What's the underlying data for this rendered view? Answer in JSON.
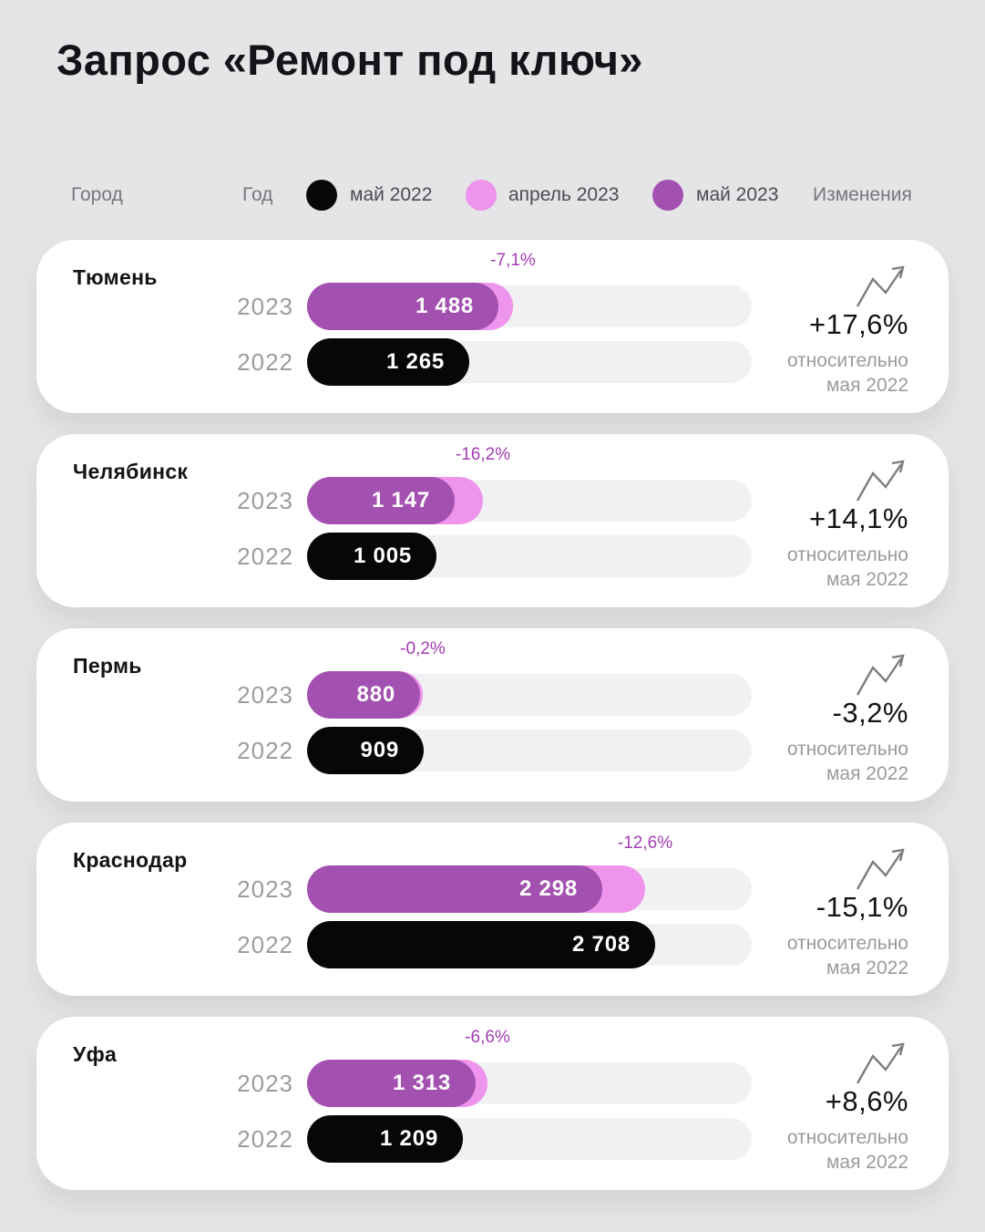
{
  "title": "Запрос «Ремонт под ключ»",
  "colors": {
    "page_bg": "#e5e4e6",
    "card_bg": "#ffffff",
    "may2022": "#070707",
    "april2023": "#ee94ec",
    "may2023": "#a351b1",
    "track": "#f1f0f2",
    "accent_text": "#a33db3"
  },
  "legend": {
    "city_label": "Город",
    "year_label": "Год",
    "items": [
      {
        "label": "май 2022",
        "color": "#070707"
      },
      {
        "label": "апрель 2023",
        "color": "#ee94ec"
      },
      {
        "label": "май 2023",
        "color": "#a351b1"
      }
    ],
    "changes_label": "Изменения"
  },
  "chart_data": {
    "type": "bar",
    "title": "Запрос «Ремонт под ключ»",
    "categories": [
      "Тюмень",
      "Челябинск",
      "Пермь",
      "Краснодар",
      "Уфа"
    ],
    "series": [
      {
        "name": "май 2022",
        "values": [
          1265,
          1005,
          909,
          2708,
          1209
        ]
      },
      {
        "name": "май 2023",
        "values": [
          1488,
          1147,
          880,
          2298,
          1313
        ]
      }
    ],
    "april_to_may_2023_change_pct": [
      -7.1,
      -16.2,
      -0.2,
      -12.6,
      -6.6
    ],
    "yoy_change_labels": [
      "+17,6%",
      "+14,1%",
      "-3,2%",
      "-15,1%",
      "+8,6%"
    ],
    "xlim_units": [
      0,
      3460
    ],
    "legend_position": "top",
    "grid": false
  },
  "cards": [
    {
      "city": "Тюмень",
      "year_2023": "2023",
      "year_2022": "2022",
      "value_2023": "1 488",
      "value_2022": "1 265",
      "num_2023": 1488,
      "num_2022": 1265,
      "april_pct": -7.1,
      "april_pct_label": "-7,1%",
      "change_label": "+17,6%",
      "relative_line1": "относительно",
      "relative_line2": "мая 2022"
    },
    {
      "city": "Челябинск",
      "year_2023": "2023",
      "year_2022": "2022",
      "value_2023": "1 147",
      "value_2022": "1 005",
      "num_2023": 1147,
      "num_2022": 1005,
      "april_pct": -16.2,
      "april_pct_label": "-16,2%",
      "change_label": "+14,1%",
      "relative_line1": "относительно",
      "relative_line2": "мая 2022"
    },
    {
      "city": "Пермь",
      "year_2023": "2023",
      "year_2022": "2022",
      "value_2023": "880",
      "value_2022": "909",
      "num_2023": 880,
      "num_2022": 909,
      "april_pct": -0.2,
      "april_pct_label": "-0,2%",
      "change_label": "-3,2%",
      "relative_line1": "относительно",
      "relative_line2": "мая 2022"
    },
    {
      "city": "Краснодар",
      "year_2023": "2023",
      "year_2022": "2022",
      "value_2023": "2 298",
      "value_2022": "2 708",
      "num_2023": 2298,
      "num_2022": 2708,
      "april_pct": -12.6,
      "april_pct_label": "-12,6%",
      "change_label": "-15,1%",
      "relative_line1": "относительно",
      "relative_line2": "мая 2022"
    },
    {
      "city": "Уфа",
      "year_2023": "2023",
      "year_2022": "2022",
      "value_2023": "1 313",
      "value_2022": "1 209",
      "num_2023": 1313,
      "num_2022": 1209,
      "april_pct": -6.6,
      "april_pct_label": "-6,6%",
      "change_label": "+8,6%",
      "relative_line1": "относительно",
      "relative_line2": "мая 2022"
    }
  ]
}
